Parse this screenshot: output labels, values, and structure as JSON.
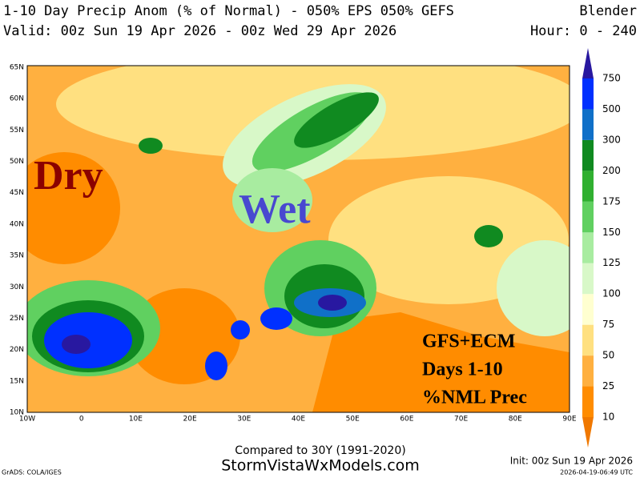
{
  "header": {
    "title": "1-10 Day Precip Anom (% of Normal) - 050% EPS 050% GEFS",
    "model": "Blender",
    "valid": "Valid: 00z Sun 19 Apr 2026 - 00z Wed 29 Apr 2026",
    "hour": "Hour: 0 - 240"
  },
  "map": {
    "lat_labels": [
      "65N",
      "60N",
      "55N",
      "50N",
      "45N",
      "40N",
      "35N",
      "30N",
      "25N",
      "20N",
      "15N",
      "10N"
    ],
    "lon_labels": [
      "10W",
      "0",
      "10E",
      "20E",
      "30E",
      "40E",
      "50E",
      "60E",
      "70E",
      "80E",
      "90E"
    ],
    "annotations": {
      "dry": "Dry",
      "wet": "Wet",
      "box": [
        "GFS+ECM",
        "Days 1-10",
        "%NML Prec"
      ]
    }
  },
  "colorbar": {
    "ticks": [
      10,
      25,
      50,
      75,
      100,
      125,
      150,
      175,
      200,
      300,
      500,
      750
    ],
    "colors": [
      "#f07800",
      "#ff8c00",
      "#ffb040",
      "#ffe080",
      "#ffffd0",
      "#d8f8c8",
      "#a8eca0",
      "#60d060",
      "#30b030",
      "#108a20",
      "#1070c8",
      "#0030ff",
      "#2818a0"
    ]
  },
  "footer": {
    "compared": "Compared to 30Y (1991-2020)",
    "site": "StormVistaWxModels.com",
    "init": "Init: 00z Sun 19 Apr 2026",
    "credit": "GrADS: COLA/IGES",
    "stamp": "2026-04-19-06:49 UTC"
  }
}
